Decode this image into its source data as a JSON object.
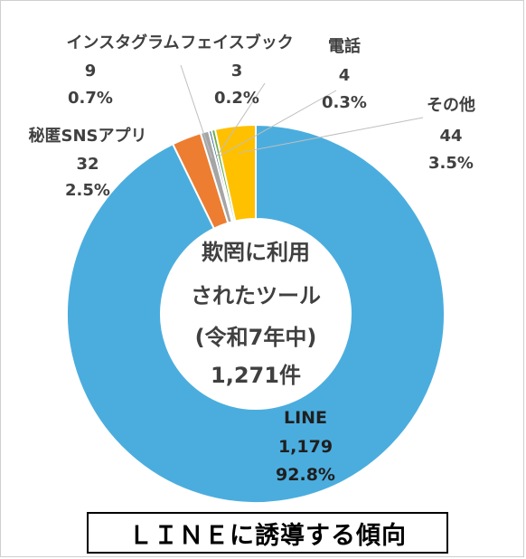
{
  "chart_data": {
    "type": "pie",
    "style": "donut",
    "total_unit": "件",
    "center_text": [
      "欺罔に利用",
      "されたツール",
      "(令和7年中)",
      "1,271件"
    ],
    "slices": [
      {
        "name": "LINE",
        "count": "1,179",
        "value": 1179,
        "percent": "92.8%",
        "color": "#4badde"
      },
      {
        "name": "秘匿SNSアプリ",
        "count": "32",
        "value": 32,
        "percent": "2.5%",
        "color": "#ed7d31"
      },
      {
        "name": "インスタグラム",
        "count": "9",
        "value": 9,
        "percent": "0.7%",
        "color": "#a5a5a5"
      },
      {
        "name": "フェイスブック",
        "count": "3",
        "value": 3,
        "percent": "0.2%",
        "color": "#2e5f8a"
      },
      {
        "name": "電話",
        "count": "4",
        "value": 4,
        "percent": "0.3%",
        "color": "#70ad47"
      },
      {
        "name": "その他",
        "count": "44",
        "value": 44,
        "percent": "3.5%",
        "color": "#ffc000"
      }
    ]
  },
  "caption": "ＬＩＮＥに誘導する傾向"
}
